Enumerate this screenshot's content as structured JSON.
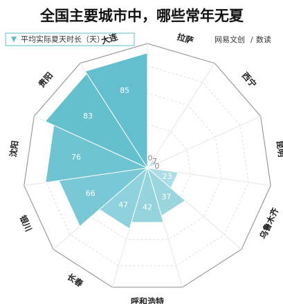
{
  "chart_data": {
    "type": "polar-bar",
    "title": "全国主要城市中，哪些常年无夏",
    "legend": "平均实际夏天时长（天）",
    "brand": "网易文创",
    "brand_sub": "数读",
    "categories": [
      "大连",
      "拉萨",
      "西宁",
      "昆明",
      "乌鲁木齐",
      null,
      "呼和浩特",
      "长春",
      "银川",
      "沈阳",
      "贵阳"
    ],
    "values": [
      85,
      0,
      7,
      0,
      23,
      37,
      42,
      47,
      66,
      76,
      83
    ],
    "color": "#5bbccb",
    "rlim": [
      0,
      92
    ]
  }
}
